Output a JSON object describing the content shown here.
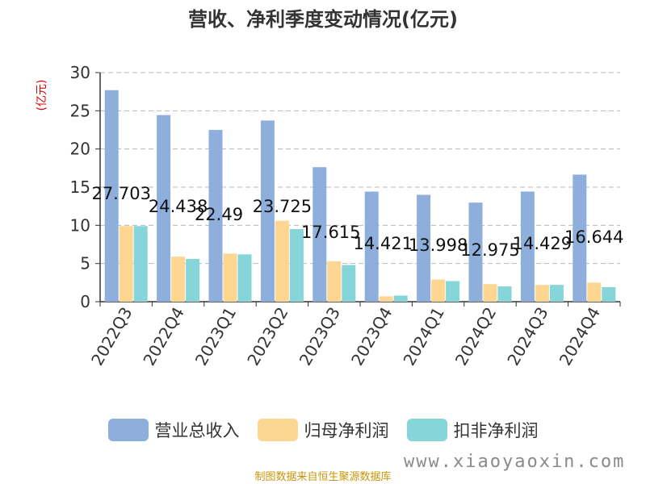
{
  "chart_data": {
    "type": "bar",
    "title": "营收、净利季度变动情况(亿元)",
    "ylabel": "(亿元)",
    "ylim": [
      0,
      30
    ],
    "yticks": [
      0,
      5,
      10,
      15,
      20,
      25,
      30
    ],
    "grid": true,
    "legend_position": "bottom",
    "categories": [
      "2022Q3",
      "2022Q4",
      "2023Q1",
      "2023Q2",
      "2023Q3",
      "2023Q4",
      "2024Q1",
      "2024Q2",
      "2024Q3",
      "2024Q4"
    ],
    "series": [
      {
        "name": "营业总收入",
        "color": "#8eaedc",
        "values": [
          27.703,
          24.438,
          22.49,
          23.725,
          17.615,
          14.421,
          13.998,
          12.975,
          14.429,
          16.644
        ],
        "data_labels": [
          "27.703",
          "24.438",
          "22.49",
          "23.725",
          "17.615",
          "14.421",
          "13.998",
          "12.975",
          "14.429",
          "16.644"
        ]
      },
      {
        "name": "归母净利润",
        "color": "#fdd692",
        "values": [
          9.9,
          5.9,
          6.3,
          10.6,
          5.3,
          0.7,
          2.9,
          2.3,
          2.2,
          2.5
        ]
      },
      {
        "name": "扣非净利润",
        "color": "#86d5d8",
        "values": [
          9.9,
          5.6,
          6.2,
          9.5,
          4.8,
          0.8,
          2.7,
          2.0,
          2.2,
          1.9
        ]
      }
    ]
  },
  "source": "制图数据来自恒生聚源数据库",
  "watermark": "www.xiaoyaoxin.com"
}
